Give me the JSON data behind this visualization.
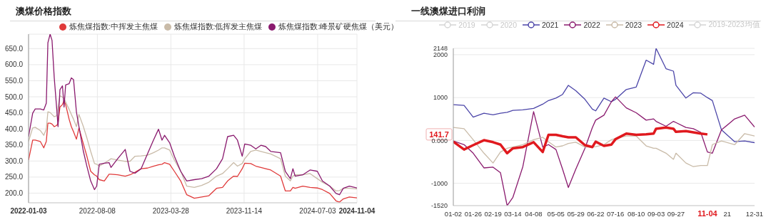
{
  "chart_data": [
    {
      "type": "line",
      "title": "澳煤价格指数",
      "x": [
        "2022-01-03",
        "2022-01-16",
        "2022-01-24",
        "2022-02-09",
        "2022-02-20",
        "2022-02-28",
        "2022-03-05",
        "2022-03-12",
        "2022-03-18",
        "2022-03-25",
        "2022-04-02",
        "2022-04-06",
        "2022-04-12",
        "2022-04-20",
        "2022-04-25",
        "2022-04-30",
        "2022-05-11",
        "2022-05-18",
        "2022-05-25",
        "2022-06-03",
        "2022-06-11",
        "2022-06-25",
        "2022-07-06",
        "2022-07-18",
        "2022-07-30",
        "2022-08-06",
        "2022-08-14",
        "2022-08-30",
        "2022-09-14",
        "2022-09-20",
        "2022-10-11",
        "2022-11-04",
        "2022-11-19",
        "2022-12-05",
        "2022-12-24",
        "2023-01-13",
        "2023-02-01",
        "2023-02-17",
        "2023-02-28",
        "2023-03-08",
        "2023-03-24",
        "2023-04-08",
        "2023-04-28",
        "2023-05-17",
        "2023-06-10",
        "2023-07-03",
        "2023-07-26",
        "2023-08-19",
        "2023-09-07",
        "2023-09-23",
        "2023-10-12",
        "2023-10-24",
        "2023-11-08",
        "2023-11-16",
        "2023-12-05",
        "2023-12-21",
        "2024-01-06",
        "2024-01-21",
        "2024-02-06",
        "2024-03-08",
        "2024-03-23",
        "2024-04-08",
        "2024-04-16",
        "2024-04-23",
        "2024-05-17",
        "2024-06-09",
        "2024-07-02",
        "2024-07-18",
        "2024-08-10",
        "2024-08-30",
        "2024-09-10",
        "2024-09-22",
        "2024-10-11",
        "2024-11-04"
      ],
      "series": [
        {
          "name": "炼焦煤指数:中挥发主焦煤",
          "color": "#e03a3a",
          "values": [
            303,
            365,
            365,
            361,
            341,
            361,
            418,
            418,
            415,
            407,
            411,
            418,
            468,
            476,
            488,
            476,
            430,
            407,
            391,
            368,
            403,
            353,
            315,
            268,
            257,
            253,
            242,
            238,
            259,
            259,
            257,
            253,
            257,
            265,
            276,
            278,
            284,
            288,
            290,
            295,
            290,
            268,
            238,
            195,
            184,
            188,
            192,
            215,
            218,
            238,
            253,
            252,
            276,
            293,
            292,
            284,
            280,
            276,
            272,
            253,
            207,
            207,
            218,
            215,
            222,
            218,
            216,
            211,
            199,
            176,
            172,
            182,
            188,
            185
          ]
        },
        {
          "name": "炼焦煤指数:低挥发主焦煤",
          "color": "#c9bba8",
          "values": [
            361,
            403,
            405,
            395,
            380,
            399,
            453,
            451,
            445,
            438,
            441,
            468,
            503,
            499,
            495,
            484,
            461,
            445,
            430,
            407,
            445,
            407,
            372,
            330,
            292,
            290,
            284,
            293,
            303,
            307,
            303,
            299,
            299,
            315,
            316,
            318,
            326,
            334,
            341,
            341,
            334,
            303,
            268,
            222,
            218,
            224,
            234,
            253,
            261,
            276,
            295,
            284,
            292,
            307,
            330,
            334,
            330,
            326,
            322,
            307,
            253,
            238,
            253,
            257,
            257,
            261,
            245,
            234,
            222,
            207,
            208,
            215,
            215,
            213
          ]
        },
        {
          "name": "炼焦煤指数:峰景矿硬焦煤（美元）",
          "color": "#8a1a6e",
          "values": [
            376,
            449,
            462,
            462,
            459,
            480,
            668,
            695,
            676,
            560,
            461,
            407,
            522,
            534,
            468,
            537,
            541,
            559,
            553,
            453,
            407,
            330,
            284,
            238,
            211,
            222,
            290,
            293,
            295,
            280,
            307,
            336,
            268,
            262,
            276,
            322,
            365,
            399,
            365,
            380,
            357,
            315,
            268,
            238,
            242,
            245,
            253,
            276,
            307,
            376,
            380,
            365,
            315,
            353,
            349,
            338,
            349,
            345,
            330,
            326,
            268,
            245,
            276,
            253,
            257,
            272,
            268,
            238,
            222,
            199,
            195,
            215,
            222,
            216
          ]
        }
      ],
      "xlim": [
        "2022-01-03",
        "2024-11-04"
      ],
      "xticks": [
        "2022-01-03",
        "2022-08-08",
        "2023-03-28",
        "2023-11-14",
        "2024-07-03",
        "2024-11-04"
      ],
      "ylim": [
        170,
        695
      ],
      "yticks": [
        {
          "value": 200,
          "label": "200.0"
        },
        {
          "value": 250,
          "label": "250.0"
        },
        {
          "value": 300,
          "label": "300.0"
        },
        {
          "value": 350,
          "label": "350.0"
        },
        {
          "value": 400,
          "label": "400.0"
        },
        {
          "value": 450,
          "label": "450.0"
        },
        {
          "value": 500,
          "label": "500.0"
        },
        {
          "value": 550,
          "label": "550.0"
        },
        {
          "value": 600,
          "label": "600.0"
        },
        {
          "value": 650,
          "label": "650.0"
        }
      ],
      "grid": true,
      "legend": "top"
    },
    {
      "type": "line",
      "title": "一线澳煤进口利润",
      "x": [
        "--01-02",
        "--01-15",
        "--01-26",
        "--02-08",
        "--02-19",
        "--02-28",
        "--03-07",
        "--03-14",
        "--03-26",
        "--04-08",
        "--04-19",
        "--04-26",
        "--05-05",
        "--05-13",
        "--05-20",
        "--05-29",
        "--06-09",
        "--06-18",
        "--06-22",
        "--07-02",
        "--07-11",
        "--07-16",
        "--07-29",
        "--08-10",
        "--08-22",
        "--08-31",
        "--09-03",
        "--09-15",
        "--09-24",
        "--09-27",
        "--10-09",
        "--10-18",
        "--10-27",
        "--11-04",
        "--11-10",
        "--11-21",
        "--12-07",
        "--12-19",
        "--12-31"
      ],
      "series": [
        {
          "name": "2019",
          "color": "#d5d5d5",
          "values": [
            null,
            null,
            null,
            null,
            null,
            null,
            null,
            null,
            null,
            null,
            null,
            null,
            null,
            null,
            null,
            null,
            null,
            null,
            null,
            null,
            null,
            null,
            null,
            null,
            null,
            null,
            null,
            null,
            null,
            null,
            null,
            null,
            null,
            null,
            null,
            null,
            null,
            null,
            null
          ]
        },
        {
          "name": "2020",
          "color": "#d5d5d5",
          "values": [
            null,
            null,
            null,
            null,
            null,
            null,
            null,
            null,
            null,
            null,
            null,
            null,
            null,
            null,
            null,
            null,
            null,
            null,
            null,
            null,
            null,
            null,
            null,
            null,
            null,
            null,
            null,
            null,
            null,
            null,
            null,
            null,
            null,
            null,
            null,
            null,
            null,
            null,
            null
          ]
        },
        {
          "name": "2021",
          "color": "#4b45a8",
          "values": [
            834,
            817,
            543,
            634,
            600,
            634,
            657,
            703,
            714,
            749,
            846,
            931,
            989,
            1074,
            1286,
            1160,
            960,
            731,
            691,
            989,
            903,
            960,
            1189,
            1246,
            1874,
            1777,
            2148,
            1674,
            1617,
            1286,
            989,
            1114,
            1103,
            1000,
            931,
            246,
            -29,
            -11,
            -51
          ]
        },
        {
          "name": "2022",
          "color": "#8a1a6e",
          "values": [
            -11,
            -97,
            -297,
            -640,
            -623,
            -754,
            -1520,
            -1326,
            -611,
            674,
            -154,
            -97,
            -211,
            -669,
            -1097,
            -669,
            -183,
            303,
            474,
            589,
            903,
            1017,
            760,
            646,
            474,
            503,
            446,
            331,
            446,
            417,
            303,
            274,
            189,
            -269,
            -297,
            246,
            503,
            589,
            314
          ]
        },
        {
          "name": "2023",
          "color": "#c9bba8",
          "values": [
            303,
            274,
            17,
            -297,
            -526,
            -269,
            -183,
            -154,
            -97,
            17,
            74,
            -29,
            -154,
            -126,
            -69,
            -40,
            -154,
            -154,
            -143,
            -97,
            17,
            46,
            103,
            103,
            -126,
            -183,
            -183,
            -297,
            -440,
            -297,
            -526,
            -611,
            -583,
            -583,
            -97,
            -11,
            -97,
            160,
            103
          ]
        },
        {
          "name": "2024",
          "color": "#e0191e",
          "x": [
            "--01-02",
            "--01-15",
            "--01-26",
            "--02-08",
            "--02-19",
            "--02-28",
            "--03-07",
            "--03-14",
            "--03-26",
            "--04-08",
            "--04-19",
            "--04-26",
            "--05-05",
            "--05-13",
            "--05-20",
            "--05-29",
            "--06-09",
            "--06-18",
            "--06-22",
            "--07-02",
            "--07-11",
            "--07-16",
            "--07-29",
            "--08-10",
            "--08-22",
            "--08-31",
            "--09-03",
            "--09-15",
            "--09-24",
            "--09-27",
            "--10-09",
            "--10-18",
            "--10-27",
            "--11-04"
          ],
          "values": [
            -29,
            -211,
            -109,
            6,
            -40,
            -97,
            -297,
            -183,
            -154,
            -40,
            -269,
            131,
            131,
            97,
            74,
            74,
            -109,
            -154,
            -29,
            -126,
            -97,
            29,
            160,
            131,
            143,
            160,
            274,
            303,
            274,
            200,
            217,
            189,
            160,
            141.7
          ]
        },
        {
          "name": "2019-2023均值",
          "color": "#d5d5d5",
          "values": [
            null,
            null,
            null,
            null,
            null,
            null,
            null,
            null,
            null,
            null,
            null,
            null,
            null,
            null,
            null,
            null,
            null,
            null,
            null,
            null,
            null,
            null,
            null,
            null,
            null,
            null,
            null,
            null,
            null,
            null,
            null,
            null,
            null,
            null,
            null,
            null,
            null,
            null,
            null
          ]
        }
      ],
      "xlim": [
        "--01-02",
        "--12-31"
      ],
      "xticks": [
        {
          "value": "--01-02",
          "label": "01-02"
        },
        {
          "value": "--01-26",
          "label": "01-26"
        },
        {
          "value": "--02-19",
          "label": "02-19"
        },
        {
          "value": "--03-14",
          "label": "03-14"
        },
        {
          "value": "--04-08",
          "label": "04-08"
        },
        {
          "value": "--05-05",
          "label": "05-05"
        },
        {
          "value": "--05-29",
          "label": "05-29"
        },
        {
          "value": "--06-22",
          "label": "06-22"
        },
        {
          "value": "--07-16",
          "label": "07-16"
        },
        {
          "value": "--08-10",
          "label": "08-10"
        },
        {
          "value": "--09-03",
          "label": "09-03"
        },
        {
          "value": "--09-27",
          "label": "09-27"
        },
        {
          "value": "--11-04",
          "label": "11-04"
        },
        {
          "value": "--11-28",
          "label": "21"
        },
        {
          "value": "--12-31",
          "label": "12-31"
        }
      ],
      "ylim": [
        -1520,
        2148
      ],
      "yticks": [
        -1520,
        -1000,
        {
          "value": 0,
          "label": "0.000"
        },
        1000,
        2000,
        2148
      ],
      "annotations": [
        {
          "text": "141.7",
          "y": 141.7
        }
      ],
      "grid": "y",
      "legend": "top"
    }
  ]
}
